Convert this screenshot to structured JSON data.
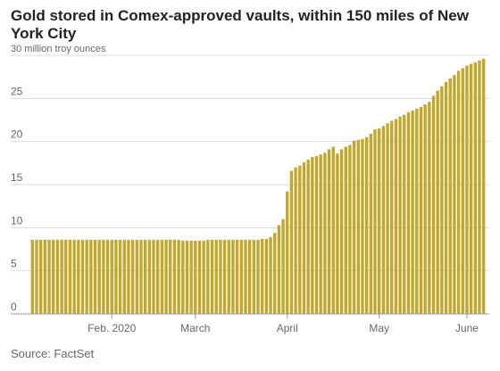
{
  "chart_data": {
    "type": "bar",
    "title": "Gold stored in Comex-approved vaults, within 150 miles of New York City",
    "unit_label": "30 million troy ounces",
    "source": "Source: FactSet",
    "ylim": [
      0,
      30
    ],
    "yticks": [
      "0",
      "5",
      "10",
      "15",
      "20",
      "25"
    ],
    "xtick_labels": [
      {
        "label": "Feb. 2020",
        "index": 19
      },
      {
        "label": "March",
        "index": 39
      },
      {
        "label": "April",
        "index": 61
      },
      {
        "label": "May",
        "index": 83
      },
      {
        "label": "June",
        "index": 104
      }
    ],
    "grid": true,
    "bar_color": "#c4a72a",
    "values": [
      8.6,
      8.6,
      8.6,
      8.6,
      8.6,
      8.6,
      8.6,
      8.6,
      8.6,
      8.6,
      8.6,
      8.6,
      8.6,
      8.6,
      8.6,
      8.6,
      8.6,
      8.6,
      8.6,
      8.6,
      8.6,
      8.6,
      8.6,
      8.6,
      8.6,
      8.6,
      8.6,
      8.6,
      8.6,
      8.6,
      8.6,
      8.6,
      8.6,
      8.6,
      8.6,
      8.6,
      8.5,
      8.5,
      8.5,
      8.5,
      8.5,
      8.5,
      8.6,
      8.6,
      8.6,
      8.6,
      8.6,
      8.6,
      8.6,
      8.6,
      8.6,
      8.6,
      8.6,
      8.6,
      8.6,
      8.7,
      8.7,
      8.9,
      9.4,
      10.3,
      11.0,
      14.2,
      16.6,
      17.0,
      17.2,
      17.6,
      17.9,
      18.2,
      18.3,
      18.5,
      18.7,
      19.1,
      19.4,
      18.6,
      19.1,
      19.4,
      19.6,
      20.1,
      20.2,
      20.3,
      20.5,
      20.9,
      21.4,
      21.5,
      21.8,
      22.1,
      22.4,
      22.6,
      22.9,
      23.1,
      23.4,
      23.6,
      23.8,
      24.0,
      24.3,
      24.6,
      25.3,
      25.9,
      26.4,
      26.9,
      27.3,
      27.7,
      28.2,
      28.5,
      28.8,
      29.0,
      29.2,
      29.4,
      29.6
    ]
  }
}
